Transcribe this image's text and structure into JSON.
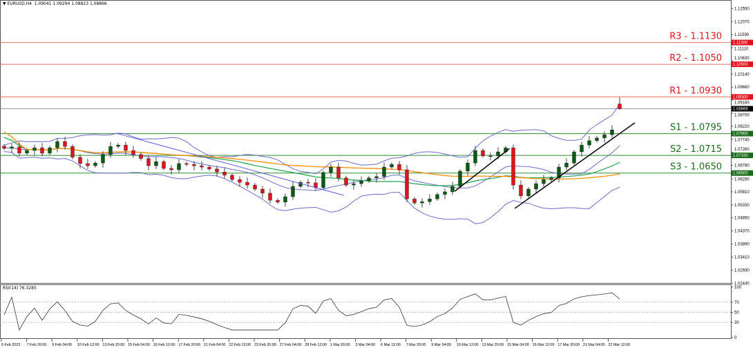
{
  "header": {
    "symbol": "EURUSD,H4",
    "ohlc": "1.09041 1.09294 1.08823 1.08866"
  },
  "colors": {
    "bull": "#0b5a14",
    "bear": "#e0121b",
    "resistance": "#f06a6a",
    "support": "#2e8b2e",
    "bollinger": "#6b6bc8",
    "ma_fast": "#2aa85a",
    "ma_slow": "#ff8c00",
    "trend_down": "#5a5ae0",
    "trend_up": "#000000",
    "current": "#000000"
  },
  "chart_data": [
    {
      "type": "candlestick",
      "title": "",
      "ylim": [
        1.0244,
        1.1275
      ],
      "yticks": [
        "1.12550",
        "1.12070",
        "1.11590",
        "1.11110",
        "1.10630",
        "1.10140",
        "1.09660",
        "1.09180",
        "1.08700",
        "1.08220",
        "1.07740",
        "1.07260",
        "1.06780",
        "1.06290",
        "1.05810",
        "1.05330",
        "1.04850",
        "1.04370",
        "1.03890",
        "1.03410",
        "1.02930",
        "1.02440"
      ],
      "xticks": [
        "6 Feb 2023",
        "7 Feb 20:00",
        "9 Feb 04:00",
        "10 Feb 12:00",
        "13 Feb 20:00",
        "15 Feb 04:00",
        "16 Feb 12:00",
        "17 Feb 20:00",
        "21 Feb 04:00",
        "22 Feb 12:00",
        "23 Feb 20:00",
        "27 Feb 04:00",
        "28 Feb 12:00",
        "1 Mar 20:00",
        "3 Mar 04:00",
        "6 Mar 12:00",
        "7 Mar 20:00",
        "9 Mar 04:00",
        "10 Mar 12:00",
        "13 Mar 20:00",
        "15 Mar 04:00",
        "16 Mar 12:00",
        "17 Mar 20:00",
        "21 Mar 04:00",
        "22 Mar 12:00"
      ],
      "closes": [
        1.0741,
        1.0746,
        1.0723,
        1.0733,
        1.0743,
        1.0723,
        1.0743,
        1.0766,
        1.0748,
        1.0708,
        1.0685,
        1.0677,
        1.0687,
        1.0718,
        1.0748,
        1.0753,
        1.0733,
        1.0718,
        1.0703,
        1.0677,
        1.0692,
        1.0667,
        1.0662,
        1.0685,
        1.0682,
        1.0677,
        1.0672,
        1.0665,
        1.0654,
        1.0642,
        1.0626,
        1.0616,
        1.0606,
        1.0591,
        1.0576,
        1.055,
        1.0543,
        1.0563,
        1.0601,
        1.0616,
        1.0614,
        1.0596,
        1.0652,
        1.0672,
        1.0632,
        1.0606,
        1.0611,
        1.0621,
        1.0632,
        1.0637,
        1.0672,
        1.0682,
        1.0662,
        1.0555,
        1.054,
        1.0545,
        1.0555,
        1.0571,
        1.0581,
        1.0601,
        1.0657,
        1.0687,
        1.0733,
        1.0713,
        1.0713,
        1.0728,
        1.0743,
        1.0606,
        1.0566,
        1.0591,
        1.0611,
        1.0626,
        1.0632,
        1.0672,
        1.0687,
        1.0728,
        1.0753,
        1.0769,
        1.0779,
        1.0791,
        1.0809,
        1.0904
      ],
      "last_candle": {
        "open": 1.09041,
        "high": 1.09294,
        "low": 1.08823,
        "close": 1.08866
      },
      "current_price": "1.08866",
      "levels": [
        {
          "name": "R3 - 1.1130",
          "price": 1.113,
          "tag": "1.11300",
          "kind": "resistance"
        },
        {
          "name": "R2 - 1.1050",
          "price": 1.105,
          "tag": "1.10500",
          "kind": "resistance"
        },
        {
          "name": "R1 - 1.0930",
          "price": 1.093,
          "tag": "1.09300",
          "kind": "resistance"
        },
        {
          "name": "S1 - 1.0795",
          "price": 1.0795,
          "tag": "1.07950",
          "kind": "support"
        },
        {
          "name": "S2 - 1.0715",
          "price": 1.0715,
          "tag": "1.07150",
          "kind": "support"
        },
        {
          "name": "S3 - 1.0650",
          "price": 1.065,
          "tag": "1.06500",
          "kind": "support"
        }
      ],
      "trendlines": [
        {
          "kind": "down",
          "from": [
            14.7,
            1.0797
          ],
          "to": [
            44.7,
            1.0568
          ]
        },
        {
          "kind": "up",
          "from": [
            59.3,
            1.0583
          ],
          "to": [
            66.5,
            1.074
          ]
        },
        {
          "kind": "up",
          "from": [
            67.2,
            1.052
          ],
          "to": [
            83.0,
            1.0835
          ]
        }
      ],
      "indicators": [
        "Bollinger Bands",
        "Moving Average (fast)",
        "Moving Average (slow)"
      ]
    },
    {
      "type": "line",
      "title": "RSI(14) 76.3285",
      "ylim": [
        0,
        100
      ],
      "yticks": [
        "100",
        "70",
        "50",
        "30",
        "0"
      ],
      "levels": [
        70,
        50,
        30
      ],
      "last_value": 76.3285
    }
  ]
}
